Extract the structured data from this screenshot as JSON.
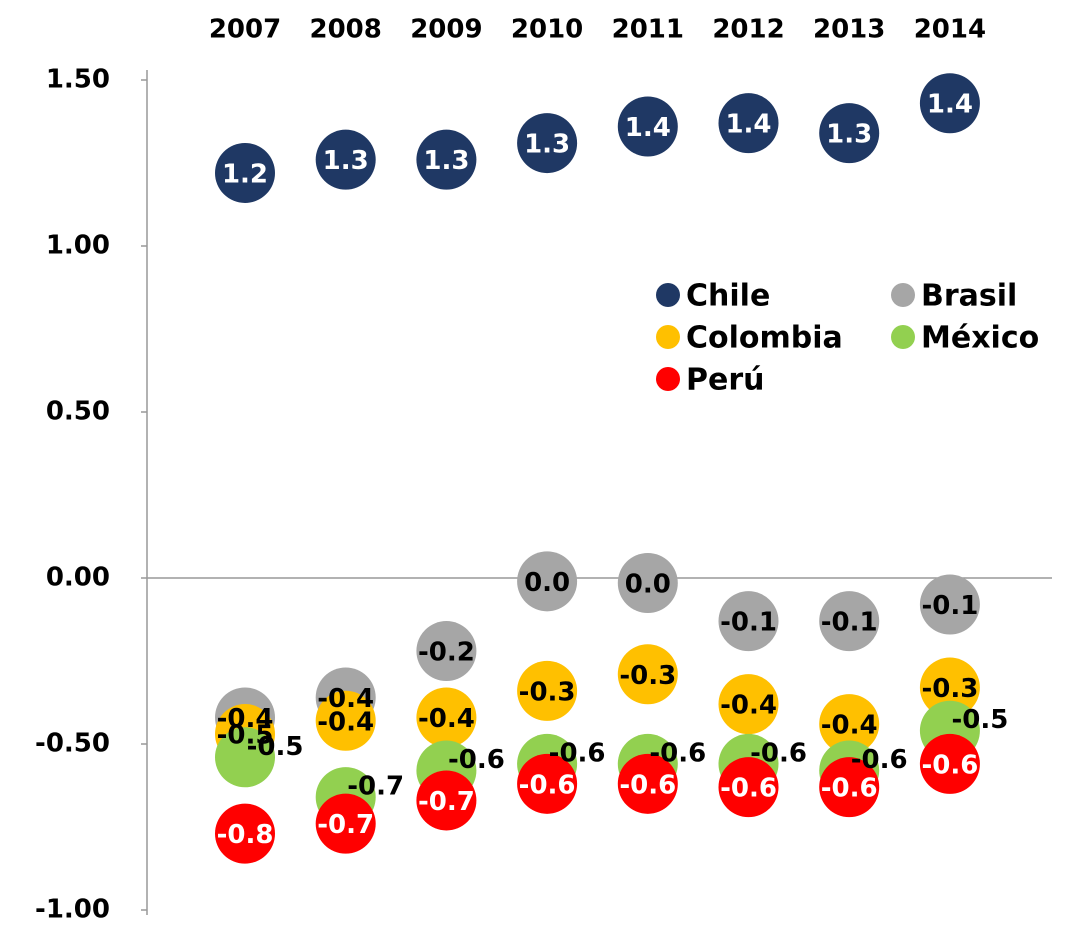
{
  "chart_data": {
    "type": "scatter",
    "categories": [
      "2007",
      "2008",
      "2009",
      "2010",
      "2011",
      "2012",
      "2013",
      "2014"
    ],
    "ylim": [
      -1,
      1.5
    ],
    "yticks": [
      {
        "value": -1,
        "label": "-1.00"
      },
      {
        "value": -0.5,
        "label": "-0.50"
      },
      {
        "value": 0,
        "label": "0.00"
      },
      {
        "value": 0.5,
        "label": "0.50"
      },
      {
        "value": 1,
        "label": "1.00"
      },
      {
        "value": 1.5,
        "label": "1.50"
      }
    ],
    "legend": "upper right",
    "series": [
      {
        "name": "Chile",
        "color": "#1f3864",
        "values": [
          1.22,
          1.26,
          1.26,
          1.31,
          1.36,
          1.37,
          1.34,
          1.43
        ],
        "value_labels": [
          "1.2",
          "1.3",
          "1.3",
          "1.3",
          "1.4",
          "1.4",
          "1.3",
          "1.4"
        ]
      },
      {
        "name": "Brasil",
        "color": "#a6a6a6",
        "values": [
          -0.42,
          -0.36,
          -0.22,
          -0.01,
          -0.015,
          -0.13,
          -0.13,
          -0.08
        ],
        "value_labels": [
          "-0.4",
          "-0.4",
          "-0.2",
          "0.0",
          "0.0",
          "-0.1",
          "-0.1",
          "-0.1"
        ]
      },
      {
        "name": "Colombia",
        "color": "#ffc000",
        "values": [
          -0.47,
          -0.43,
          -0.42,
          -0.34,
          -0.29,
          -0.38,
          -0.44,
          -0.33
        ],
        "value_labels": [
          "-0.5",
          "-0.4",
          "-0.4",
          "-0.3",
          "-0.3",
          "-0.4",
          "-0.4",
          "-0.3"
        ]
      },
      {
        "name": "México",
        "color": "#92d050",
        "values": [
          -0.54,
          -0.66,
          -0.58,
          -0.56,
          -0.56,
          -0.56,
          -0.58,
          -0.46
        ],
        "value_labels": [
          "-0.5",
          "-0.7",
          "-0.6",
          "-0.6",
          "-0.6",
          "-0.6",
          "-0.6",
          "-0.5"
        ]
      },
      {
        "name": "Perú",
        "color": "#ff0000",
        "values": [
          -0.77,
          -0.74,
          -0.67,
          -0.62,
          -0.62,
          -0.63,
          -0.63,
          -0.56
        ],
        "value_labels": [
          "-0.8",
          "-0.7",
          "-0.7",
          "-0.6",
          "-0.6",
          "-0.6",
          "-0.6",
          "-0.6"
        ]
      }
    ]
  }
}
